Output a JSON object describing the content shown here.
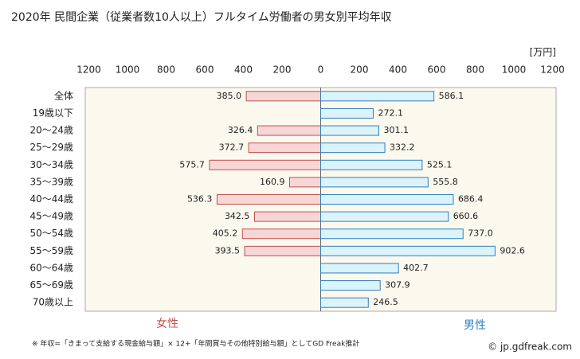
{
  "chart_data": {
    "type": "bar",
    "orientation": "horizontal",
    "title": "2020年 民間企業（従業者数10人以上）フルタイム労働者の男女別平均年収",
    "unit": "[万円]",
    "categories": [
      "全体",
      "19歳以下",
      "20～24歳",
      "25～29歳",
      "30～34歳",
      "35～39歳",
      "40～44歳",
      "45～49歳",
      "50～54歳",
      "55～59歳",
      "60～64歳",
      "65～69歳",
      "70歳以上"
    ],
    "series": [
      {
        "name": "女性",
        "color": "#c0504d",
        "fill": "#f7d6d6",
        "axis": "x2",
        "values": [
          385.0,
          null,
          326.4,
          372.7,
          575.7,
          160.9,
          536.3,
          342.5,
          405.2,
          393.5,
          null,
          null,
          null
        ],
        "value_labels": [
          "385.0",
          null,
          "326.4",
          "372.7",
          "575.7",
          "160.9",
          "536.3",
          "342.5",
          "405.2",
          "393.5",
          null,
          null,
          null
        ]
      },
      {
        "name": "男性",
        "color": "#2f7fbf",
        "fill": "#dbf3fb",
        "values": [
          586.1,
          272.1,
          301.1,
          332.2,
          525.1,
          555.8,
          686.4,
          660.6,
          737.0,
          902.6,
          402.7,
          307.9,
          246.5
        ],
        "value_labels": [
          "586.1",
          "272.1",
          "301.1",
          "332.2",
          "525.1",
          "555.8",
          "686.4",
          "660.6",
          "737.0",
          "902.6",
          "402.7",
          "307.9",
          "246.5"
        ]
      }
    ],
    "xlim": [
      0,
      1200
    ],
    "xticks": [
      0,
      200,
      400,
      600,
      800,
      1000,
      1200
    ],
    "x2lim": [
      0,
      1200
    ],
    "x2ticks": [
      1200,
      1000,
      800,
      600,
      400,
      200
    ],
    "grid": false,
    "footnote": "※ 年収=「きまって支給する現金給与額」× 12+「年間賞与その他特別給与額」としてGD Freak推計",
    "credit": "© jp.gdfreak.com"
  }
}
